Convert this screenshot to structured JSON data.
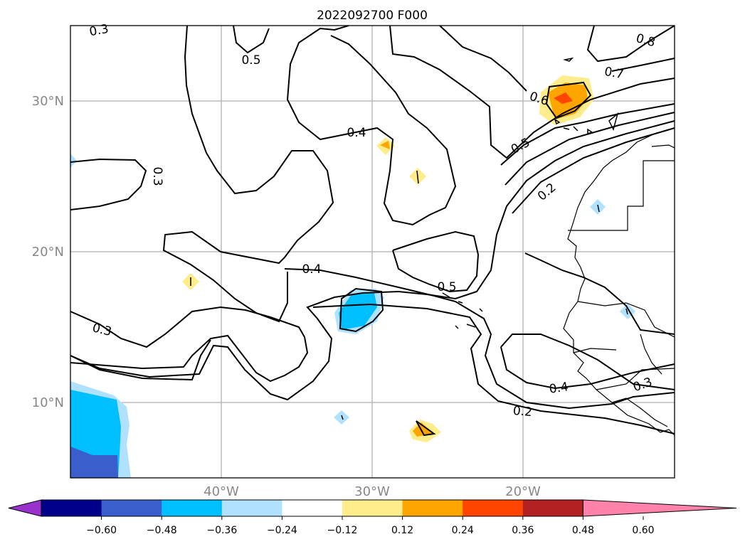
{
  "chart_data": {
    "type": "contour_map",
    "title": "2022092700 F000",
    "x_ticks": [
      "40°W",
      "30°W",
      "20°W"
    ],
    "y_ticks": [
      "30°N",
      "20°N",
      "10°N"
    ],
    "grid": true,
    "contour_line_labels": [
      "0.8",
      "0.7",
      "0.6",
      "0.5",
      "0.5",
      "0.5",
      "0.4",
      "0.4",
      "0.4",
      "0.3",
      "0.3",
      "0.3",
      "0.3",
      "0.2",
      "0.2"
    ],
    "colorbar": {
      "ticks": [
        "−0.60",
        "−0.48",
        "−0.36",
        "−0.24",
        "−0.12",
        "0.12",
        "0.24",
        "0.36",
        "0.48",
        "0.60"
      ],
      "colors": [
        "#9932cc",
        "#00008b",
        "#3a5fcd",
        "#00bfff",
        "#b0e2ff",
        "#ffffff",
        "#ffec8b",
        "#ffa500",
        "#ff4500",
        "#b22222",
        "#ff82ab"
      ],
      "extend": "both"
    }
  }
}
